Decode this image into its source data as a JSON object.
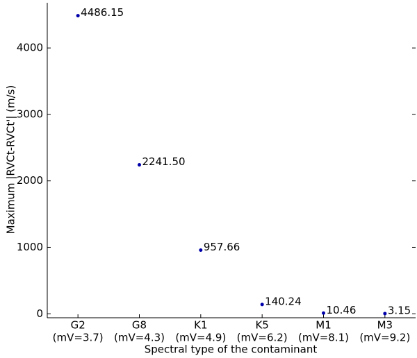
{
  "chart_data": {
    "type": "scatter",
    "categories": [
      "G2",
      "G8",
      "K1",
      "K5",
      "M1",
      "M3"
    ],
    "category_sublabels": [
      "(mV=3.7)",
      "(mV=4.3)",
      "(mV=4.9)",
      "(mV=6.2)",
      "(mV=8.1)",
      "(mV=9.2)"
    ],
    "values": [
      4486.15,
      2241.5,
      957.66,
      140.24,
      10.46,
      3.15
    ],
    "value_labels": [
      "4486.15",
      "2241.50",
      "957.66",
      "140.24",
      "10.46",
      "3.15"
    ],
    "color": "#0000aa",
    "x_label": "Spectral type of the contaminant",
    "y_label": "Maximum |RVCt-RVCt'| (m/s)",
    "ylim": [
      -60,
      4680
    ],
    "yticks": [
      0,
      1000,
      2000,
      3000,
      4000
    ]
  }
}
